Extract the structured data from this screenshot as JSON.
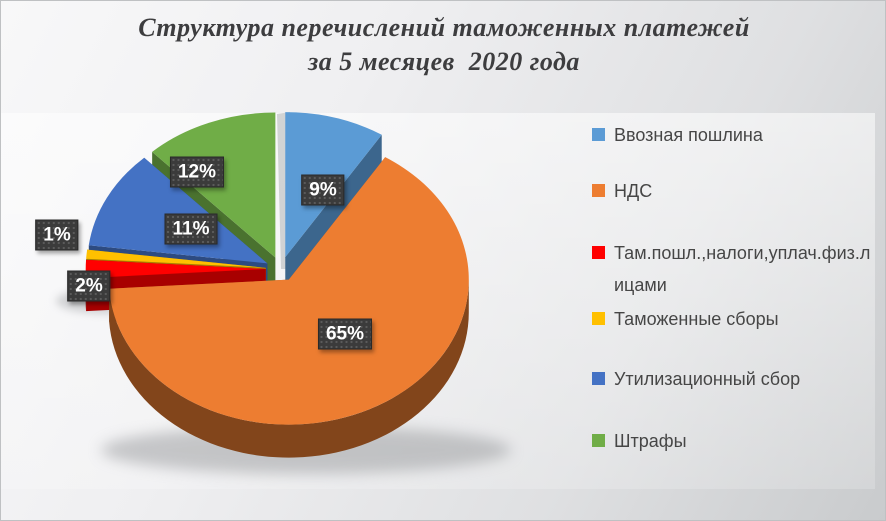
{
  "header": {
    "line1": "Структура перечислений таможенных платежей",
    "line2": "за 5 месяцев  2020 года"
  },
  "chart_data": {
    "type": "pie",
    "is_3d": true,
    "exploded": true,
    "title": "Структура перечислений таможенных платежей за 5 месяцев 2020 года",
    "title_lines": [
      "Структура перечислений таможенных платежей",
      "за 5 месяцев  2020 года"
    ],
    "categories": [
      "Ввозная пошлина",
      "НДС",
      "Там.пошл.,налоги,уплач.физ.лицами",
      "Таможенные сборы",
      "Утилизационный сбор",
      "Штрафы"
    ],
    "values": [
      9,
      65,
      2,
      1,
      11,
      12
    ],
    "unit": "%",
    "data_labels": [
      "9%",
      "65%",
      "2%",
      "1%",
      "11%",
      "12%"
    ],
    "colors": [
      "#5B9BD5",
      "#ED7D31",
      "#FF0000",
      "#FFC000",
      "#4472C4",
      "#70AD47"
    ],
    "start_angle_deg": 0,
    "direction": "clockwise",
    "legend_position": "right",
    "label_style": {
      "bg": "#3B3B3B",
      "color": "#FFFFFF"
    },
    "background": "#E9EAEC"
  }
}
